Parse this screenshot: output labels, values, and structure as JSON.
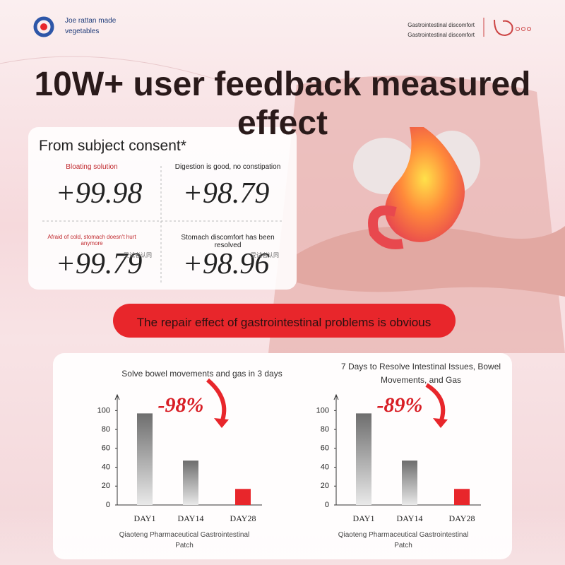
{
  "header": {
    "brand": "Joe rattan made vegetables",
    "tags": [
      "Gastrointestinal discomfort",
      "Gastrointestinal discomfort"
    ]
  },
  "title": "10W+ user feedback measured effect",
  "consent": {
    "heading": "From subject consent*",
    "stats": [
      {
        "label": "Bloating solution",
        "value": "+99.98"
      },
      {
        "label": "Digestion is good, no constipation",
        "value": "+98.79"
      },
      {
        "label": "Afraid of cold, stomach doesn't hurt anymore",
        "value": "+99.79",
        "note": "受试者认同"
      },
      {
        "label": "Stomach discomfort has been resolved",
        "value": "+98.96",
        "note": "受试者认同"
      }
    ]
  },
  "banner": "The repair effect of gastrointestinal problems is obvious",
  "chart_data": [
    {
      "type": "bar",
      "title": "Solve bowel movements and gas in 3 days",
      "annotation": "-98%",
      "categories": [
        "DAY1",
        "DAY14",
        "DAY28"
      ],
      "values": [
        97,
        47,
        17
      ],
      "colors": [
        "#6e6e6e",
        "#6e6e6e",
        "#e8262b"
      ],
      "ylim": [
        0,
        110
      ],
      "yticks": [
        0,
        20,
        40,
        60,
        80,
        100
      ],
      "caption": "Qiaoteng Pharmaceutical Gastrointestinal Patch"
    },
    {
      "type": "bar",
      "title": "7 Days to Resolve Intestinal Issues, Bowel Movements, and Gas",
      "annotation": "-89%",
      "categories": [
        "DAY1",
        "DAY14",
        "DAY28"
      ],
      "values": [
        97,
        47,
        17
      ],
      "colors": [
        "#6e6e6e",
        "#6e6e6e",
        "#e8262b"
      ],
      "ylim": [
        0,
        110
      ],
      "yticks": [
        0,
        20,
        40,
        60,
        80,
        100
      ],
      "caption": "Qiaoteng Pharmaceutical Gastrointestinal Patch"
    }
  ]
}
